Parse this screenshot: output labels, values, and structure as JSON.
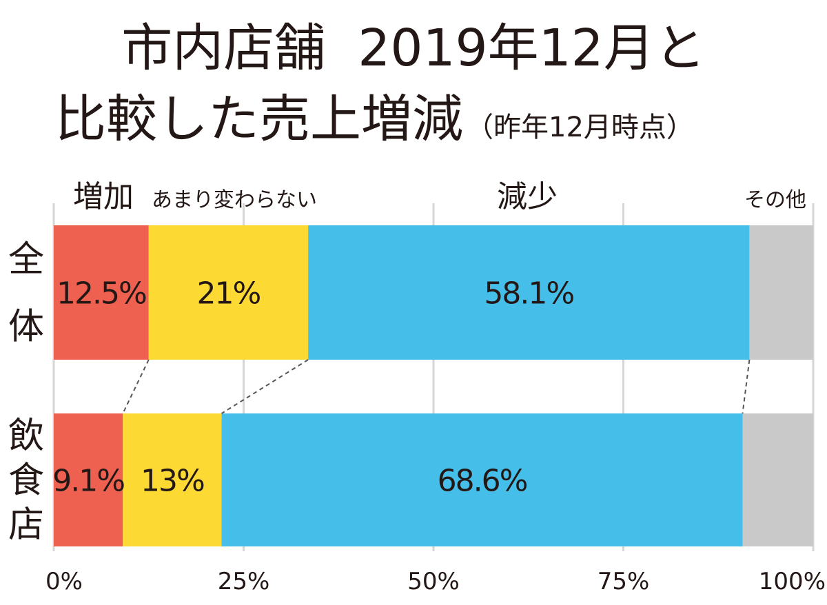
{
  "chart_data": {
    "type": "bar",
    "orientation": "horizontal-stacked-100",
    "title_line1": "市内店舗  2019年12月と",
    "title_line2": "比較した売上増減",
    "subtitle": "（昨年12月時点）",
    "categories": [
      "全体",
      "飲食店"
    ],
    "series": [
      {
        "name": "増加",
        "values": [
          12.5,
          9.1
        ],
        "labels": [
          "12.5%",
          "9.1%"
        ],
        "color": "#EE6150"
      },
      {
        "name": "あまり変わらない",
        "values": [
          21,
          13
        ],
        "labels": [
          "21%",
          "13%"
        ],
        "color": "#FCDA33"
      },
      {
        "name": "減少",
        "values": [
          58.1,
          68.6
        ],
        "labels": [
          "58.1%",
          "68.6%"
        ],
        "color": "#45BEEA"
      },
      {
        "name": "その他",
        "values": [
          8.4,
          9.3
        ],
        "labels": [
          "",
          ""
        ],
        "color": "#C9C9C9"
      }
    ],
    "xlim": [
      0,
      100
    ],
    "xticks": [
      "0%",
      "25%",
      "50%",
      "75%",
      "100%"
    ],
    "grid": true,
    "legend": "top"
  }
}
